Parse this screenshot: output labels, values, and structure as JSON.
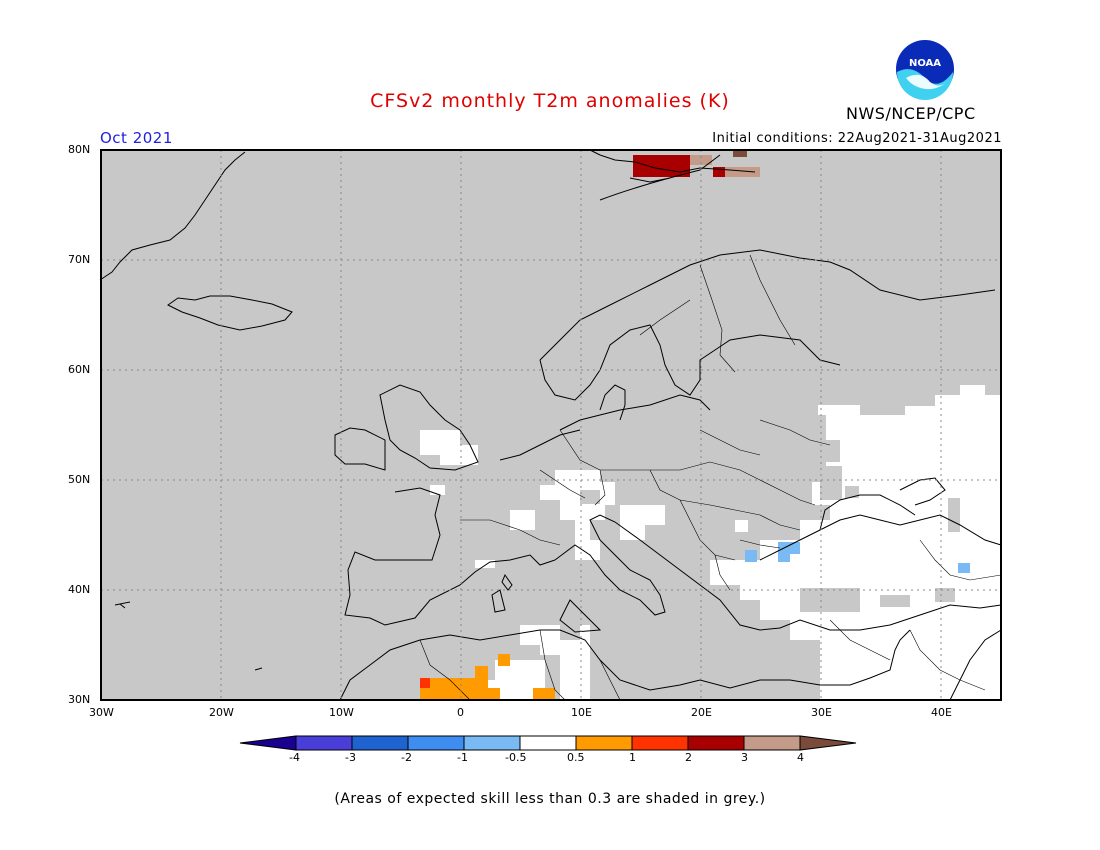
{
  "header": {
    "title": "CFSv2 monthly T2m anomalies (K)",
    "org": "NWS/NCEP/CPC",
    "month": "Oct 2021",
    "initial_conditions": "Initial conditions: 22Aug2021-31Aug2021",
    "logo_text": "NOAA"
  },
  "map": {
    "lat_labels": [
      "80N",
      "70N",
      "60N",
      "50N",
      "40N",
      "30N"
    ],
    "lon_labels": [
      "30W",
      "20W",
      "10W",
      "0",
      "10E",
      "20E",
      "30E",
      "40E"
    ]
  },
  "colorbar": {
    "labels": [
      "-4",
      "-3",
      "-2",
      "-1",
      "-0.5",
      "0.5",
      "1",
      "2",
      "3",
      "4"
    ],
    "colors": [
      "#1a0090",
      "#4a3ed8",
      "#1f63d0",
      "#3d8ef0",
      "#79baf5",
      "#ffffff",
      "#ff9a00",
      "#ff3300",
      "#a80000",
      "#c49a88",
      "#7a4a3a"
    ]
  },
  "footnote": "(Areas of expected skill less than 0.3 are shaded in grey.)",
  "colors": {
    "grey_skill": "#c8c8c8",
    "neutral": "#ffffff",
    "title": "#e00000",
    "month": "#2020e0"
  }
}
